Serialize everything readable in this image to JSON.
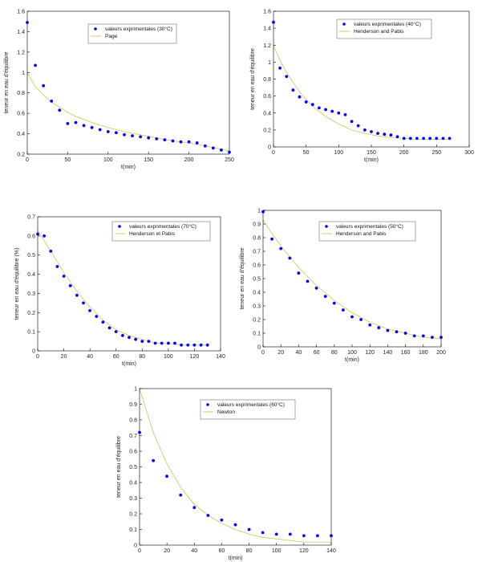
{
  "colors": {
    "points": "#0000ff",
    "fit_curve": "#c8c850",
    "axes": "#000000"
  },
  "chart_data": [
    {
      "type": "scatter",
      "xlabel": "t(min)",
      "ylabel": "teneur en eau d'équilibre",
      "xlim": [
        0,
        250
      ],
      "ylim": [
        0.2,
        1.6
      ],
      "xticks": [
        0,
        50,
        100,
        150,
        200,
        250
      ],
      "yticks": [
        0.2,
        0.4,
        0.6,
        0.8,
        1,
        1.2,
        1.4,
        1.6
      ],
      "xtick_labels": [
        "0",
        "50",
        "100",
        "150",
        "200",
        "250"
      ],
      "ytick_labels": [
        "0.2",
        "0.4",
        "0.6",
        "0.8",
        "1",
        "1.2",
        "1.4",
        "1.6"
      ],
      "legend_placement": "top-center",
      "series": [
        {
          "name": "valeurs exprimentales (30°C)",
          "kind": "points",
          "x": [
            0,
            10,
            20,
            30,
            40,
            50,
            60,
            70,
            80,
            90,
            100,
            110,
            120,
            130,
            140,
            150,
            160,
            170,
            180,
            190,
            200,
            210,
            220,
            230,
            240,
            250
          ],
          "y": [
            1.49,
            1.07,
            0.87,
            0.72,
            0.63,
            0.5,
            0.51,
            0.48,
            0.46,
            0.44,
            0.42,
            0.41,
            0.39,
            0.38,
            0.37,
            0.36,
            0.35,
            0.34,
            0.33,
            0.32,
            0.32,
            0.31,
            0.28,
            0.26,
            0.24,
            0.22
          ]
        },
        {
          "name": "Page",
          "kind": "line",
          "x": [
            0,
            10,
            20,
            30,
            40,
            50,
            60,
            80,
            100,
            120,
            140,
            160,
            180,
            200,
            220,
            240,
            250
          ],
          "y": [
            1.0,
            0.86,
            0.78,
            0.71,
            0.66,
            0.61,
            0.57,
            0.51,
            0.46,
            0.42,
            0.39,
            0.36,
            0.33,
            0.31,
            0.28,
            0.25,
            0.23
          ]
        }
      ]
    },
    {
      "type": "scatter",
      "xlabel": "t(min)",
      "ylabel": "teneur en eau d'équilibre",
      "xlim": [
        0,
        300
      ],
      "ylim": [
        0,
        1.6
      ],
      "xticks": [
        0,
        50,
        100,
        150,
        200,
        250,
        300
      ],
      "yticks": [
        0,
        0.2,
        0.4,
        0.6,
        0.8,
        1,
        1.2,
        1.4,
        1.6
      ],
      "xtick_labels": [
        "0",
        "50",
        "100",
        "150",
        "200",
        "250",
        "300"
      ],
      "ytick_labels": [
        "0",
        "0.2",
        "0.4",
        "0.6",
        "0.8",
        "1",
        "1.2",
        "1.4",
        "1.6"
      ],
      "legend_placement": "top-right",
      "series": [
        {
          "name": "valeurs exprimentales (40°C)",
          "kind": "points",
          "x": [
            0,
            10,
            20,
            30,
            40,
            50,
            60,
            70,
            80,
            90,
            100,
            110,
            120,
            130,
            140,
            150,
            160,
            170,
            180,
            190,
            200,
            210,
            220,
            230,
            240,
            250,
            260,
            270
          ],
          "y": [
            1.47,
            0.93,
            0.83,
            0.67,
            0.59,
            0.53,
            0.5,
            0.46,
            0.44,
            0.42,
            0.4,
            0.38,
            0.3,
            0.25,
            0.2,
            0.18,
            0.16,
            0.15,
            0.14,
            0.12,
            0.1,
            0.1,
            0.1,
            0.1,
            0.1,
            0.1,
            0.1,
            0.1
          ]
        },
        {
          "name": "Henderson and Pabis",
          "kind": "line",
          "x": [
            0,
            10,
            20,
            30,
            40,
            50,
            60,
            80,
            100,
            120,
            140,
            160,
            180,
            200,
            220,
            240,
            270
          ],
          "y": [
            1.2,
            1.02,
            0.88,
            0.76,
            0.65,
            0.56,
            0.48,
            0.36,
            0.27,
            0.2,
            0.16,
            0.13,
            0.11,
            0.1,
            0.09,
            0.09,
            0.09
          ]
        }
      ]
    },
    {
      "type": "scatter",
      "xlabel": "t(min)",
      "ylabel": "teneur en eau d'équilibre (%)",
      "xlim": [
        0,
        140
      ],
      "ylim": [
        0,
        0.7
      ],
      "xticks": [
        0,
        20,
        40,
        60,
        80,
        100,
        120,
        140
      ],
      "yticks": [
        0,
        0.1,
        0.2,
        0.3,
        0.4,
        0.5,
        0.6,
        0.7
      ],
      "xtick_labels": [
        "0",
        "20",
        "40",
        "60",
        "80",
        "100",
        "120",
        "140"
      ],
      "ytick_labels": [
        "0",
        "0.1",
        "0.2",
        "0.3",
        "0.4",
        "0.5",
        "0.6",
        "0.7"
      ],
      "legend_placement": "top-right",
      "series": [
        {
          "name": "valeurs exprimentales (70°C)",
          "kind": "points",
          "x": [
            0,
            5,
            10,
            15,
            20,
            25,
            30,
            35,
            40,
            45,
            50,
            55,
            60,
            65,
            70,
            75,
            80,
            85,
            90,
            95,
            100,
            105,
            110,
            115,
            120,
            125,
            130
          ],
          "y": [
            0.61,
            0.6,
            0.52,
            0.44,
            0.39,
            0.34,
            0.29,
            0.25,
            0.21,
            0.18,
            0.15,
            0.12,
            0.1,
            0.08,
            0.07,
            0.06,
            0.05,
            0.05,
            0.04,
            0.04,
            0.04,
            0.04,
            0.03,
            0.03,
            0.03,
            0.03,
            0.03
          ]
        },
        {
          "name": "Henderson et Pabis",
          "kind": "line",
          "x": [
            0,
            10,
            20,
            30,
            40,
            50,
            60,
            70,
            80,
            90,
            100,
            110,
            120,
            130
          ],
          "y": [
            0.63,
            0.52,
            0.41,
            0.31,
            0.23,
            0.16,
            0.11,
            0.08,
            0.06,
            0.04,
            0.04,
            0.03,
            0.03,
            0.03
          ]
        }
      ]
    },
    {
      "type": "scatter",
      "xlabel": "t(min)",
      "ylabel": "teneur en eau d'équilibre",
      "xlim": [
        0,
        200
      ],
      "ylim": [
        0,
        1
      ],
      "xticks": [
        0,
        20,
        40,
        60,
        80,
        100,
        120,
        140,
        160,
        180,
        200
      ],
      "yticks": [
        0,
        0.1,
        0.2,
        0.3,
        0.4,
        0.5,
        0.6,
        0.7,
        0.8,
        0.9,
        1
      ],
      "xtick_labels": [
        "0",
        "20",
        "40",
        "60",
        "80",
        "100",
        "120",
        "140",
        "160",
        "180",
        "200"
      ],
      "ytick_labels": [
        "0",
        "0.1",
        "0.2",
        "0.3",
        "0.4",
        "0.5",
        "0.6",
        "0.7",
        "0.8",
        "0.9",
        "1"
      ],
      "legend_placement": "top-right",
      "series": [
        {
          "name": "valeurs exprimentales (50°C)",
          "kind": "points",
          "x": [
            0,
            10,
            20,
            30,
            40,
            50,
            60,
            70,
            80,
            90,
            100,
            110,
            120,
            130,
            140,
            150,
            160,
            170,
            180,
            190,
            200
          ],
          "y": [
            0.99,
            0.79,
            0.72,
            0.65,
            0.54,
            0.48,
            0.43,
            0.37,
            0.32,
            0.27,
            0.22,
            0.2,
            0.16,
            0.14,
            0.12,
            0.11,
            0.1,
            0.08,
            0.08,
            0.07,
            0.07
          ]
        },
        {
          "name": "Henderson and Pabis",
          "kind": "line",
          "x": [
            0,
            10,
            20,
            30,
            40,
            60,
            80,
            100,
            120,
            140,
            160,
            180,
            200
          ],
          "y": [
            0.93,
            0.83,
            0.74,
            0.66,
            0.58,
            0.45,
            0.34,
            0.25,
            0.18,
            0.13,
            0.1,
            0.07,
            0.06
          ]
        }
      ]
    },
    {
      "type": "scatter",
      "xlabel": "t(min)",
      "ylabel": "teneur en eau d'équilibre",
      "xlim": [
        0,
        140
      ],
      "ylim": [
        0,
        1
      ],
      "xticks": [
        0,
        20,
        40,
        60,
        80,
        100,
        120,
        140
      ],
      "yticks": [
        0,
        0.1,
        0.2,
        0.3,
        0.4,
        0.5,
        0.6,
        0.7,
        0.8,
        0.9,
        1
      ],
      "xtick_labels": [
        "0",
        "20",
        "40",
        "60",
        "80",
        "100",
        "120",
        "140"
      ],
      "ytick_labels": [
        "0",
        "0.1",
        "0.2",
        "0.3",
        "0.4",
        "0.5",
        "0.6",
        "0.7",
        "0.8",
        "0.9",
        "1"
      ],
      "legend_placement": "top-right",
      "series": [
        {
          "name": "valeurs exprimentales (60°C)",
          "kind": "points",
          "x": [
            0,
            10,
            20,
            30,
            40,
            50,
            60,
            70,
            80,
            90,
            100,
            110,
            120,
            130,
            140
          ],
          "y": [
            0.72,
            0.54,
            0.44,
            0.32,
            0.24,
            0.19,
            0.16,
            0.13,
            0.1,
            0.08,
            0.07,
            0.07,
            0.06,
            0.06,
            0.06
          ]
        },
        {
          "name": "Newton",
          "kind": "line",
          "x": [
            0,
            10,
            20,
            30,
            40,
            50,
            60,
            70,
            80,
            90,
            100,
            110,
            120,
            130,
            140
          ],
          "y": [
            1.0,
            0.72,
            0.52,
            0.37,
            0.26,
            0.19,
            0.14,
            0.1,
            0.07,
            0.05,
            0.04,
            0.03,
            0.02,
            0.02,
            0.02
          ]
        }
      ]
    }
  ]
}
